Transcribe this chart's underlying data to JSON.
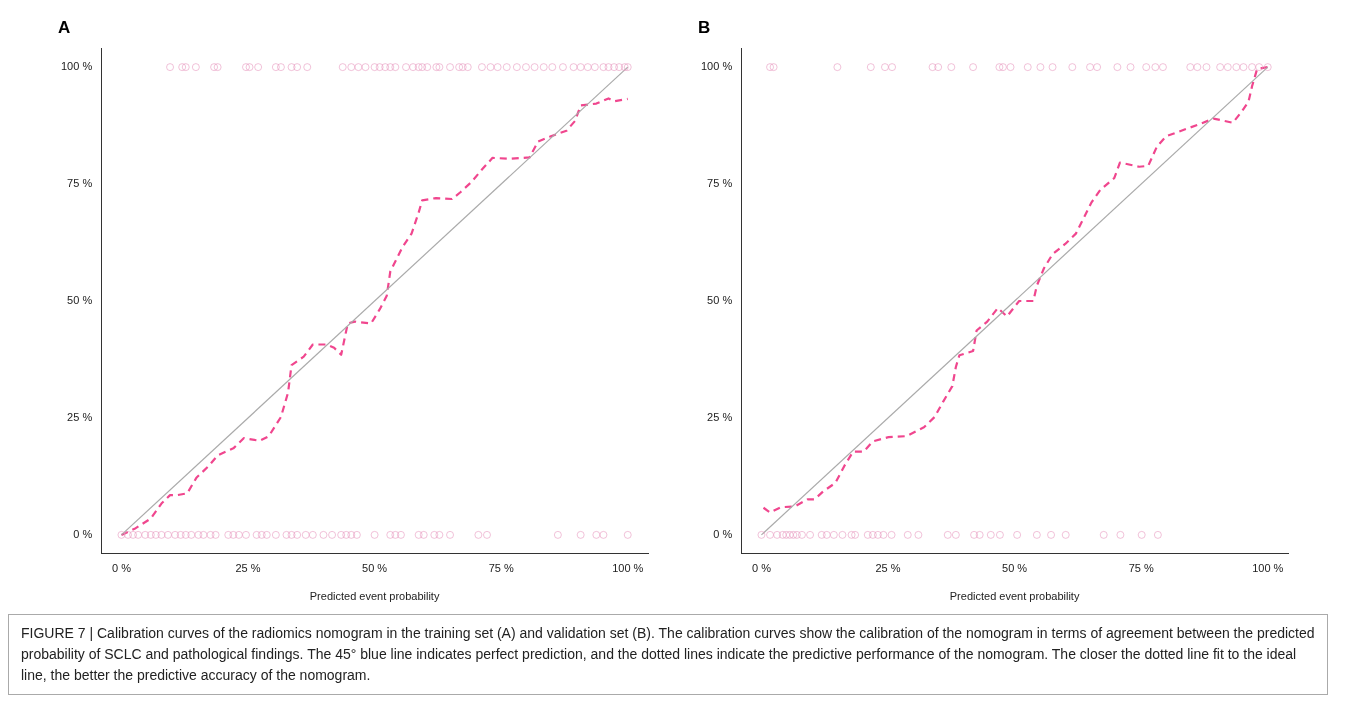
{
  "chart_data": [
    {
      "type": "line",
      "title": "A",
      "xlabel": "Predicted event probability",
      "xlim": [
        -4,
        104
      ],
      "ylim": [
        -4,
        104
      ],
      "xticks": [
        {
          "value": 0,
          "label": "0 %"
        },
        {
          "value": 25,
          "label": "25 %"
        },
        {
          "value": 50,
          "label": "50 %"
        },
        {
          "value": 75,
          "label": "75 %"
        },
        {
          "value": 100,
          "label": "100 %"
        }
      ],
      "yticks": [
        {
          "value": 0,
          "label": "0 %"
        },
        {
          "value": 25,
          "label": "25 %"
        },
        {
          "value": 50,
          "label": "50 %"
        },
        {
          "value": 75,
          "label": "75 %"
        },
        {
          "value": 100,
          "label": "100 %"
        }
      ],
      "series": [
        {
          "type": "scatter",
          "color": "#e79ac0",
          "marker": "circle",
          "x": [
            9.6,
            12,
            12.7,
            14.7,
            18.3,
            19,
            24.6,
            25.3,
            27,
            30.5,
            31.5,
            33.6,
            34.7,
            36.7,
            43.7,
            45.4,
            46.8,
            48.2,
            50,
            51,
            52.1,
            53.1,
            54.1,
            56.2,
            57.6,
            58.7,
            59.4,
            60.4,
            62.2,
            62.8,
            64.9,
            66.7,
            67.4,
            68.4,
            71.2,
            72.9,
            74.3,
            76.1,
            78.1,
            79.9,
            81.6,
            83.4,
            85.1,
            87.2,
            89.3,
            90.7,
            92.1,
            93.5,
            95.2,
            96.2,
            97.3,
            98.3,
            99.4,
            100,
            0,
            1.3,
            2.3,
            3.3,
            4.7,
            5.8,
            6.8,
            7.9,
            9.2,
            10.6,
            11.7,
            12.7,
            13.8,
            15.2,
            16.2,
            17.6,
            18.6,
            21.1,
            22.1,
            23.2,
            24.6,
            26.7,
            27.7,
            28.7,
            30.5,
            32.6,
            33.6,
            34.7,
            36.4,
            37.8,
            39.9,
            41.6,
            43.4,
            44.4,
            45.4,
            46.5,
            50,
            53.1,
            54.1,
            55.2,
            58.7,
            59.7,
            61.8,
            62.8,
            64.9,
            70.5,
            72.2,
            86.2,
            90.7,
            93.8,
            95.2,
            100
          ],
          "values": [
            100,
            100,
            100,
            100,
            100,
            100,
            100,
            100,
            100,
            100,
            100,
            100,
            100,
            100,
            100,
            100,
            100,
            100,
            100,
            100,
            100,
            100,
            100,
            100,
            100,
            100,
            100,
            100,
            100,
            100,
            100,
            100,
            100,
            100,
            100,
            100,
            100,
            100,
            100,
            100,
            100,
            100,
            100,
            100,
            100,
            100,
            100,
            100,
            100,
            100,
            100,
            100,
            100,
            100,
            0,
            0,
            0,
            0,
            0,
            0,
            0,
            0,
            0,
            0,
            0,
            0,
            0,
            0,
            0,
            0,
            0,
            0,
            0,
            0,
            0,
            0,
            0,
            0,
            0,
            0,
            0,
            0,
            0,
            0,
            0,
            0,
            0,
            0,
            0,
            0,
            0,
            0,
            0,
            0,
            0,
            0,
            0,
            0,
            0,
            0,
            0,
            0,
            0,
            0,
            0,
            0
          ]
        },
        {
          "type": "line",
          "color": "#aaaaaa",
          "marker": "none",
          "line_style": "solid",
          "x": [
            0,
            100
          ],
          "values": [
            0,
            100
          ]
        },
        {
          "type": "line",
          "color": "#f0468e",
          "marker": "none",
          "line_style": "dashed",
          "x": [
            0,
            2.6,
            5.8,
            7.9,
            9.6,
            11,
            13,
            14.8,
            17.3,
            19,
            22.1,
            24.2,
            27.3,
            29.1,
            31.5,
            32.9,
            33.6,
            36,
            37.8,
            40.6,
            42,
            43.4,
            44.7,
            46.1,
            49.3,
            51,
            52.4,
            53.1,
            55.5,
            57.3,
            58.7,
            59.4,
            62.1,
            65.3,
            67,
            69.1,
            71.2,
            73.3,
            76.8,
            80.6,
            82.3,
            84.8,
            87.9,
            89.6,
            90.7,
            93.8,
            96.2,
            97.3,
            100
          ],
          "values": [
            0,
            1.3,
            3.5,
            6.7,
            8.5,
            8.5,
            8.9,
            12.2,
            14.8,
            17,
            18.5,
            20.7,
            20.1,
            21.1,
            25.2,
            30.4,
            36.3,
            38.1,
            40.7,
            40.7,
            40,
            38.5,
            45.2,
            45.6,
            45.2,
            48.2,
            51.1,
            56.3,
            61.5,
            64.4,
            68.9,
            71.5,
            72,
            71.8,
            73.3,
            75.4,
            78.1,
            80.6,
            80.4,
            80.7,
            84.1,
            85.2,
            86.4,
            88.5,
            91.8,
            92.2,
            93.3,
            92.7,
            93.2
          ]
        }
      ],
      "annotations": [
        "FIGURE 7 | Calibration curves of the radiomics nomogram in the training set (A) and validation set (B). The calibration curves show the calibration of the nomogram in terms of agreement between the predicted probability of SCLC and pathological findings. The 45° blue line indicates perfect prediction, and the dotted lines indicate the predictive performance of the nomogram. The closer the dotted line fit to the ideal line, the better the predictive accuracy of the nomogram."
      ]
    },
    {
      "type": "line",
      "title": "B",
      "xlabel": "Predicted event probability",
      "xlim": [
        -4,
        104
      ],
      "ylim": [
        -4,
        104
      ],
      "xticks": [
        {
          "value": 0,
          "label": "0 %"
        },
        {
          "value": 25,
          "label": "25 %"
        },
        {
          "value": 50,
          "label": "50 %"
        },
        {
          "value": 75,
          "label": "75 %"
        },
        {
          "value": 100,
          "label": "100 %"
        }
      ],
      "yticks": [
        {
          "value": 0,
          "label": "0 %"
        },
        {
          "value": 25,
          "label": "25 %"
        },
        {
          "value": 50,
          "label": "50 %"
        },
        {
          "value": 75,
          "label": "75 %"
        },
        {
          "value": 100,
          "label": "100 %"
        }
      ],
      "series": [
        {
          "type": "scatter",
          "color": "#e79ac0",
          "marker": "circle",
          "x": [
            1.7,
            2.4,
            15,
            21.6,
            24.4,
            25.8,
            33.8,
            34.9,
            37.5,
            41.8,
            47,
            47.7,
            49.2,
            52.6,
            55.1,
            57.5,
            61.4,
            64.9,
            66.3,
            70.3,
            72.9,
            76,
            77.8,
            79.3,
            84.7,
            86.1,
            87.9,
            90.6,
            92.1,
            93.8,
            95.2,
            96.9,
            98.3,
            100,
            0,
            1.7,
            3.1,
            4.2,
            4.9,
            5.6,
            6.3,
            7,
            8,
            9.6,
            11.9,
            12.9,
            14.3,
            16,
            17.8,
            18.5,
            21,
            22,
            23,
            24.1,
            25.7,
            28.9,
            31,
            36.8,
            38.4,
            42,
            43.1,
            45.3,
            47.1,
            50.5,
            54.4,
            57.2,
            60.1,
            67.6,
            70.9,
            75.1,
            78.3
          ],
          "values": [
            100,
            100,
            100,
            100,
            100,
            100,
            100,
            100,
            100,
            100,
            100,
            100,
            100,
            100,
            100,
            100,
            100,
            100,
            100,
            100,
            100,
            100,
            100,
            100,
            100,
            100,
            100,
            100,
            100,
            100,
            100,
            100,
            100,
            100,
            0,
            0,
            0,
            0,
            0,
            0,
            0,
            0,
            0,
            0,
            0,
            0,
            0,
            0,
            0,
            0,
            0,
            0,
            0,
            0,
            0,
            0,
            0,
            0,
            0,
            0,
            0,
            0,
            0,
            0,
            0,
            0,
            0,
            0,
            0,
            0,
            0
          ]
        },
        {
          "type": "line",
          "color": "#aaaaaa",
          "marker": "none",
          "line_style": "solid",
          "x": [
            0,
            100
          ],
          "values": [
            0,
            100
          ]
        },
        {
          "type": "line",
          "color": "#f0468e",
          "marker": "none",
          "line_style": "dashed",
          "x": [
            0.4,
            1.7,
            3.8,
            6.6,
            9.1,
            10.5,
            12.2,
            14.6,
            16.4,
            18.1,
            20.2,
            22,
            25.1,
            28.6,
            32.1,
            34.2,
            35.9,
            37.7,
            38.4,
            39.1,
            41.8,
            42.5,
            44.6,
            46.7,
            48.5,
            50.9,
            53.7,
            54.4,
            55.8,
            57.5,
            60,
            62.1,
            63.5,
            65.2,
            66.9,
            69.7,
            70.8,
            74.6,
            76.4,
            78.1,
            79.9,
            83.7,
            86.5,
            89.3,
            93.1,
            94.8,
            96.2,
            96.9,
            97.9,
            100
          ],
          "values": [
            5.8,
            4.8,
            5.9,
            6.1,
            7.6,
            7.6,
            9.3,
            11.1,
            14.8,
            17.8,
            17.8,
            20,
            20.9,
            21.1,
            23,
            25.2,
            28.5,
            31.8,
            35.9,
            38.4,
            39.3,
            43.7,
            45.6,
            48.5,
            46.7,
            50,
            50,
            53.3,
            57,
            60,
            62.2,
            64.4,
            67.4,
            71.1,
            73.7,
            76.3,
            79.6,
            78.7,
            78.9,
            83,
            85.2,
            86.7,
            87.8,
            89,
            88.1,
            90.4,
            92.6,
            95.9,
            99.6,
            100
          ]
        }
      ]
    }
  ]
}
